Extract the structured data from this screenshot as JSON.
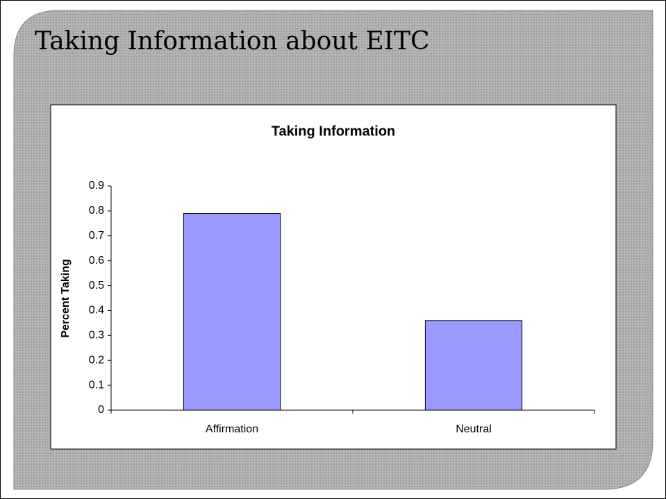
{
  "slide": {
    "title": "Taking Information about EITC"
  },
  "chart_data": {
    "type": "bar",
    "title": "Taking Information",
    "y_label": "Percent Taking",
    "categories": [
      "Affirmation",
      "Neutral"
    ],
    "values": [
      0.79,
      0.36
    ],
    "color": "#9999ff",
    "ylim": [
      0,
      0.9
    ],
    "yticks": [
      0,
      0.1,
      0.2,
      0.3,
      0.4,
      0.5,
      0.6,
      0.7,
      0.8,
      0.9
    ],
    "grid": false
  }
}
